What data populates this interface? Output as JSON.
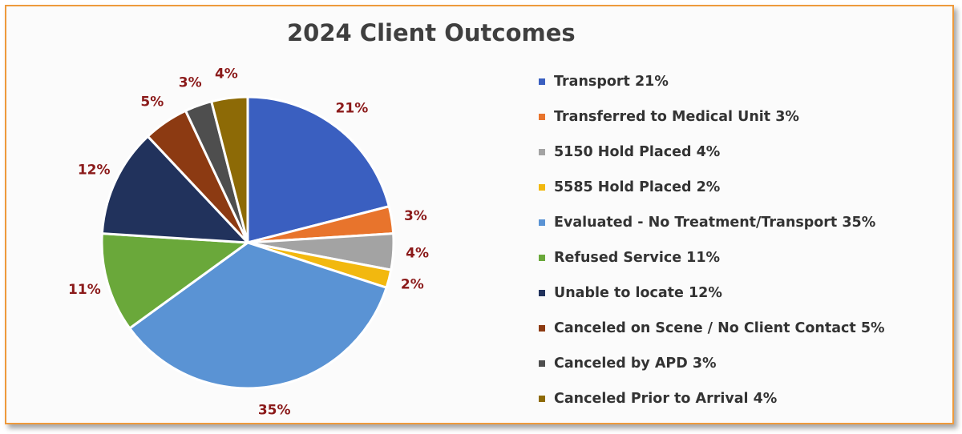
{
  "chart_data": {
    "type": "pie",
    "title": "2024 Client Outcomes",
    "legend_position": "right",
    "categories": [
      "Transport 21%",
      "Transferred to Medical Unit 3%",
      "5150 Hold Placed 4%",
      "5585 Hold Placed 2%",
      "Evaluated - No Treatment/Transport 35%",
      "Refused Service 11%",
      "Unable to locate 12%",
      "Canceled on Scene / No Client Contact 5%",
      "Canceled by APD 3%",
      "Canceled Prior to Arrival 4%"
    ],
    "values": [
      21,
      3,
      4,
      2,
      35,
      11,
      12,
      5,
      3,
      4
    ],
    "data_labels": [
      "21%",
      "3%",
      "4%",
      "2%",
      "35%",
      "11%",
      "12%",
      "5%",
      "3%",
      "4%"
    ],
    "colors": [
      "#3a5fc0",
      "#e8742c",
      "#a3a3a3",
      "#f2b80f",
      "#5a93d4",
      "#6aa83a",
      "#21325c",
      "#8c3a12",
      "#4e4e4e",
      "#8d6a06"
    ]
  }
}
